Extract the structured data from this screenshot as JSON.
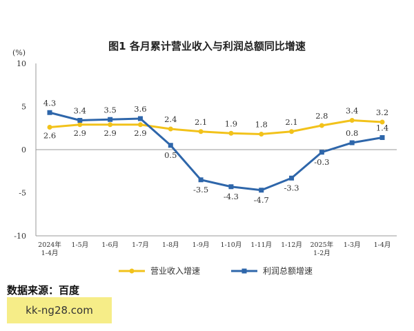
{
  "source_text": "数据来源：百度",
  "watermark": "kk-ng28.com",
  "colors": {
    "revenue": "#f2c21a",
    "profit": "#2e66aa",
    "axis": "#999999"
  },
  "chart_data": {
    "type": "line",
    "title": "图1  各月累计营业收入与利润总额同比增速",
    "ylabel": "(%)",
    "ylim": [
      -10,
      10
    ],
    "yticks": [
      "10",
      "5",
      "0",
      "-5",
      "-10"
    ],
    "categories": [
      "2024年\n1-4月",
      "1-5月",
      "1-6月",
      "1-7月",
      "1-8月",
      "1-9月",
      "1-10月",
      "1-11月",
      "1-12月",
      "2025年\n1-2月",
      "1-3月",
      "1-4月"
    ],
    "legend_position": "bottom",
    "grid": false,
    "series": [
      {
        "name": "营业收入增速",
        "color": "#f2c21a",
        "values": [
          2.6,
          2.9,
          2.9,
          2.9,
          2.4,
          2.1,
          1.9,
          1.8,
          2.1,
          2.8,
          3.4,
          3.2
        ],
        "labels": [
          "2.6",
          "2.9",
          "2.9",
          "2.9",
          "2.4",
          "2.1",
          "1.9",
          "1.8",
          "2.1",
          "2.8",
          "3.4",
          "3.2"
        ]
      },
      {
        "name": "利润总额增速",
        "color": "#2e66aa",
        "values": [
          4.3,
          3.4,
          3.5,
          3.6,
          0.5,
          -3.5,
          -4.3,
          -4.7,
          -3.3,
          -0.3,
          0.8,
          1.4
        ],
        "labels": [
          "4.3",
          "3.4",
          "3.5",
          "3.6",
          "0.5",
          "-3.5",
          "-4.3",
          "-4.7",
          "-3.3",
          "-0.3",
          "0.8",
          "1.4"
        ]
      }
    ]
  }
}
